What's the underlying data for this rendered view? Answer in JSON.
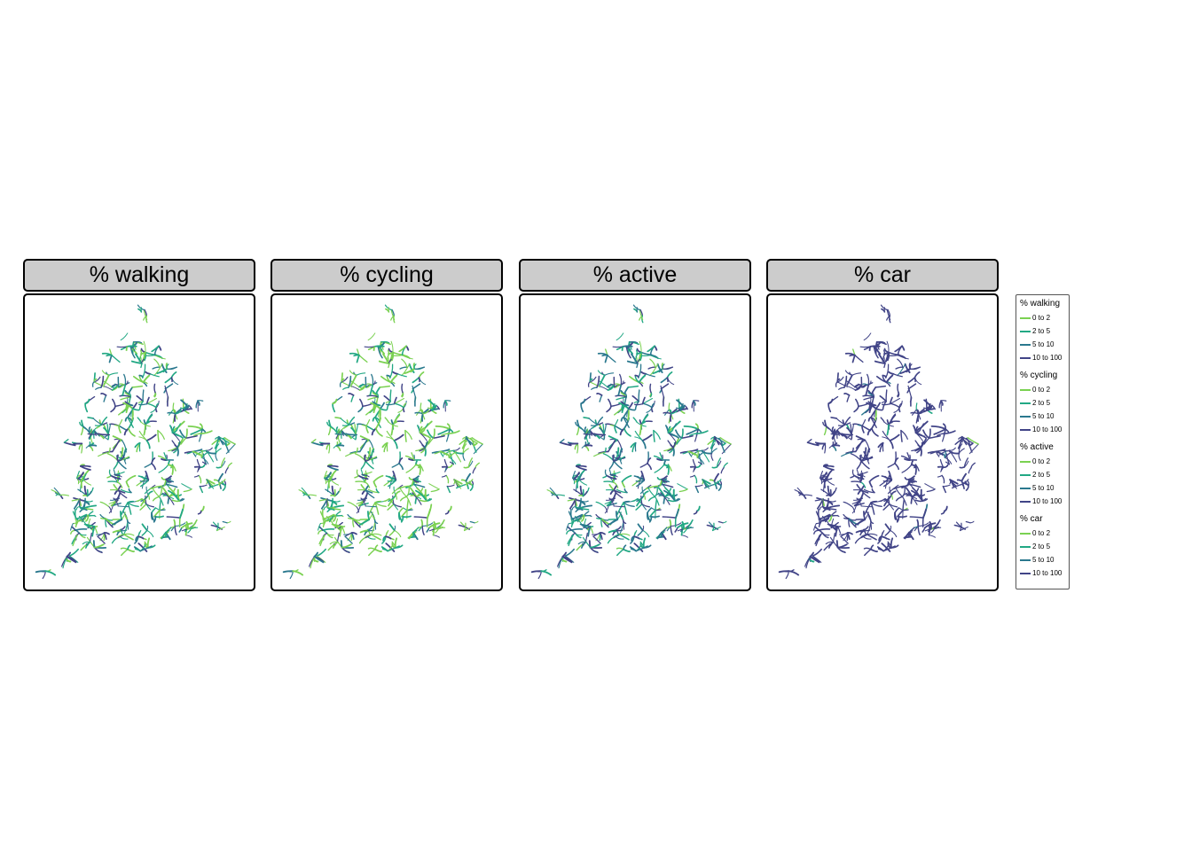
{
  "panels": [
    {
      "title": "% walking",
      "weights": [
        0.3,
        0.3,
        0.22,
        0.18
      ]
    },
    {
      "title": "% cycling",
      "weights": [
        0.5,
        0.22,
        0.16,
        0.12
      ]
    },
    {
      "title": "% active",
      "weights": [
        0.1,
        0.3,
        0.32,
        0.28
      ]
    },
    {
      "title": "% car",
      "weights": [
        0.01,
        0.01,
        0.02,
        0.96
      ]
    }
  ],
  "legend": {
    "colors": [
      "#7ad151",
      "#22a884",
      "#2a788e",
      "#414487"
    ],
    "classes": [
      "0 to 2",
      "2 to 5",
      "5 to 10",
      "10 to 100"
    ],
    "groups": [
      {
        "title": "% walking"
      },
      {
        "title": "% cycling"
      },
      {
        "title": "% active"
      },
      {
        "title": "% car"
      }
    ]
  }
}
